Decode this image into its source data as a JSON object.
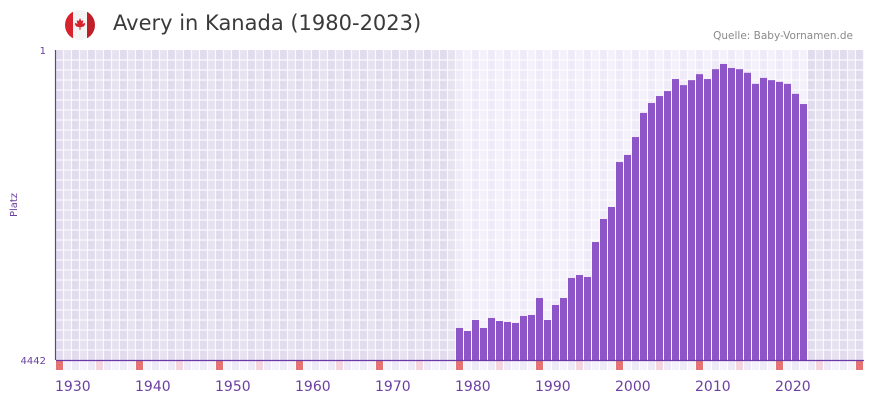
{
  "title": "Avery in Kanada (1980-2023)",
  "source": "Quelle: Baby-Vornamen.de",
  "flag_icon": "canada-flag-icon",
  "colors": {
    "bar": "#8e55c8",
    "axis": "#6a3aa8",
    "label": "#6b3fa0",
    "decade_marker": "#e57373",
    "half_decade_marker": "#f5d5de"
  },
  "chart_data": {
    "type": "bar",
    "title": "Avery in Kanada (1980-2023)",
    "xlabel": "",
    "ylabel": "Platz",
    "y_scale": "sqrt, inverted (rank 1 at top)",
    "ylim": [
      4442,
      1
    ],
    "y_ticks": [
      "1",
      "4442"
    ],
    "xlim": [
      1930,
      2030
    ],
    "x_ticks": [
      "1930",
      "1940",
      "1950",
      "1960",
      "1970",
      "1980",
      "1990",
      "2000",
      "2010",
      "2020"
    ],
    "grid": true,
    "x": [
      1980,
      1981,
      1982,
      1983,
      1984,
      1985,
      1986,
      1987,
      1988,
      1989,
      1990,
      1991,
      1992,
      1993,
      1994,
      1995,
      1996,
      1997,
      1998,
      1999,
      2000,
      2001,
      2002,
      2003,
      2004,
      2005,
      2006,
      2007,
      2008,
      2009,
      2010,
      2011,
      2012,
      2013,
      2014,
      2015,
      2016,
      2017,
      2018,
      2019,
      2020,
      2021,
      2022,
      2023
    ],
    "values": [
      3572,
      3650,
      3370,
      3572,
      3320,
      3395,
      3420,
      3445,
      3271,
      3246,
      2843,
      3370,
      3006,
      2843,
      2403,
      2341,
      2382,
      1705,
      1321,
      1140,
      581,
      510,
      351,
      184,
      131,
      99,
      79,
      40,
      58,
      43,
      28,
      40,
      18,
      10,
      16,
      18,
      25,
      54,
      37,
      43,
      48,
      54,
      90,
      136
    ]
  }
}
